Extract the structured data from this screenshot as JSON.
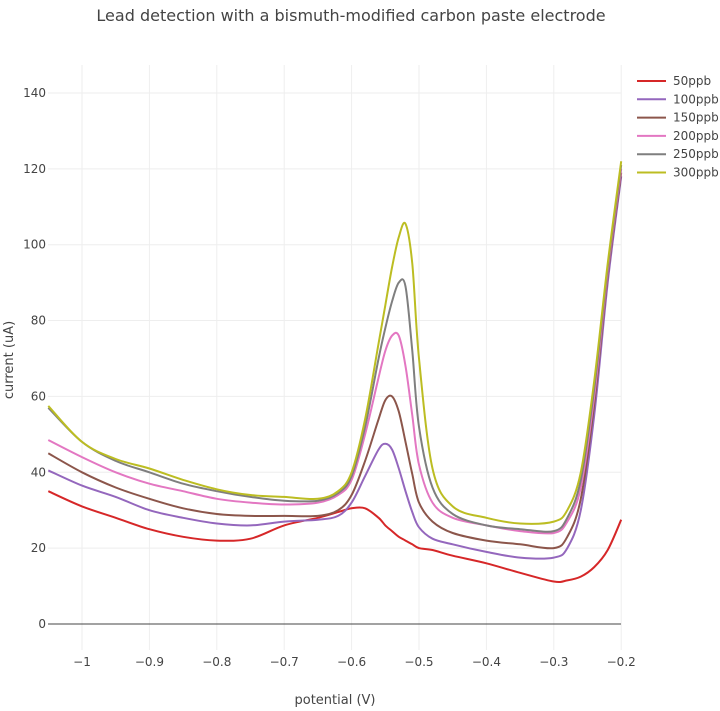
{
  "chart_data": {
    "type": "line",
    "title": "Lead detection with a bismuth-modified carbon paste electrode",
    "xlabel": "potential (V)",
    "ylabel": "current (uA)",
    "xlim": [
      -1.05,
      -0.2
    ],
    "ylim": [
      -7,
      147
    ],
    "grid": true,
    "legend_position": "right-top",
    "x_ticks": [
      -1,
      -0.9,
      -0.8,
      -0.7,
      -0.6,
      -0.5,
      -0.4,
      -0.3,
      -0.2
    ],
    "x_tick_labels": [
      "−1",
      "−0.9",
      "−0.8",
      "−0.7",
      "−0.6",
      "−0.5",
      "−0.4",
      "−0.3",
      "−0.2"
    ],
    "y_ticks": [
      0,
      20,
      40,
      60,
      80,
      100,
      120,
      140
    ],
    "y_tick_labels": [
      "0",
      "20",
      "40",
      "60",
      "80",
      "100",
      "120",
      "140"
    ],
    "x": [
      -1.05,
      -1.0,
      -0.95,
      -0.9,
      -0.85,
      -0.8,
      -0.75,
      -0.7,
      -0.65,
      -0.62,
      -0.6,
      -0.58,
      -0.56,
      -0.55,
      -0.54,
      -0.53,
      -0.52,
      -0.51,
      -0.5,
      -0.48,
      -0.45,
      -0.4,
      -0.35,
      -0.3,
      -0.28,
      -0.26,
      -0.24,
      -0.22,
      -0.2
    ],
    "series": [
      {
        "name": "50ppb",
        "color": "#d62728",
        "values": [
          35,
          31,
          28,
          25,
          23,
          22,
          22.5,
          26,
          28,
          29.5,
          30.5,
          30.5,
          28,
          26,
          24.5,
          23,
          22,
          21,
          20,
          19.5,
          18,
          16,
          13.5,
          11.2,
          11.5,
          12.5,
          15,
          19.5,
          27.5
        ]
      },
      {
        "name": "100ppb",
        "color": "#9467bd",
        "values": [
          40.5,
          36.5,
          33.5,
          30,
          28,
          26.5,
          26,
          27,
          27.5,
          28.5,
          32,
          39,
          46,
          47.5,
          46,
          41,
          35,
          29.5,
          25.5,
          22.5,
          21,
          19,
          17.5,
          17.5,
          20,
          30,
          55,
          90,
          118
        ]
      },
      {
        "name": "150ppb",
        "color": "#8c564b",
        "values": [
          45,
          40,
          36,
          33,
          30.5,
          29,
          28.5,
          28.5,
          28.5,
          30,
          34,
          43,
          54,
          59,
          60,
          56,
          48,
          39.5,
          32,
          27,
          24,
          22,
          21,
          20,
          23,
          33,
          58,
          92,
          119
        ]
      },
      {
        "name": "200ppb",
        "color": "#e377c2",
        "values": [
          48.5,
          44,
          40,
          37,
          35,
          33,
          32,
          31.5,
          32,
          34,
          38,
          50,
          65,
          72,
          76,
          76,
          68,
          55,
          42,
          32,
          28,
          26,
          24.5,
          24,
          27,
          36,
          60,
          93,
          120
        ]
      },
      {
        "name": "250ppb",
        "color": "#7f7f7f",
        "values": [
          57,
          48,
          43,
          40,
          37,
          35,
          33.5,
          32.5,
          32.5,
          34.5,
          39,
          52,
          70,
          78,
          85,
          90,
          89,
          72,
          52,
          36,
          29,
          26,
          25,
          24.5,
          28,
          38,
          62,
          94,
          121
        ]
      },
      {
        "name": "300ppb",
        "color": "#bcbd22",
        "values": [
          57.5,
          48,
          43.5,
          41,
          38,
          35.5,
          34,
          33.5,
          33,
          35,
          40,
          54,
          74,
          84,
          94,
          102,
          105.5,
          95,
          70,
          41,
          31,
          28,
          26.5,
          27,
          30,
          40,
          64,
          95,
          122
        ]
      }
    ]
  }
}
